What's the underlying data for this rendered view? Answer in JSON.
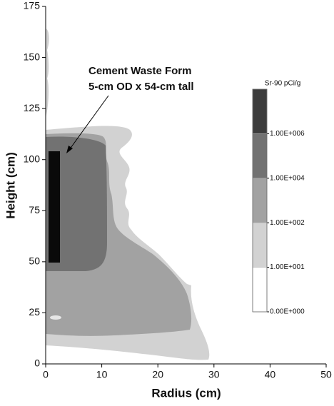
{
  "chart_data": {
    "type": "contour",
    "x_label": "Radius (cm)",
    "y_label": "Height (cm)",
    "xlim": [
      0,
      50
    ],
    "ylim": [
      0,
      175
    ],
    "xticks": [
      0,
      10,
      20,
      30,
      40,
      50
    ],
    "yticks": [
      0,
      25,
      50,
      75,
      100,
      125,
      150,
      175
    ],
    "annotation": [
      "Cement Waste Form",
      "5-cm OD x 54-cm tall"
    ],
    "colorbar": {
      "title": "Sr-90  pCi/g",
      "levels": [
        {
          "value": 0,
          "label": "0.00E+000"
        },
        {
          "value": 10,
          "label": "1.00E+001"
        },
        {
          "value": 100,
          "label": "1.00E+002"
        },
        {
          "value": 10000,
          "label": "1.00E+004"
        },
        {
          "value": 1000000,
          "label": "1.00E+006"
        }
      ],
      "colors": [
        "#ffffff",
        "#d2d2d2",
        "#a2a2a2",
        "#727272",
        "#3c3c3c"
      ]
    }
  }
}
